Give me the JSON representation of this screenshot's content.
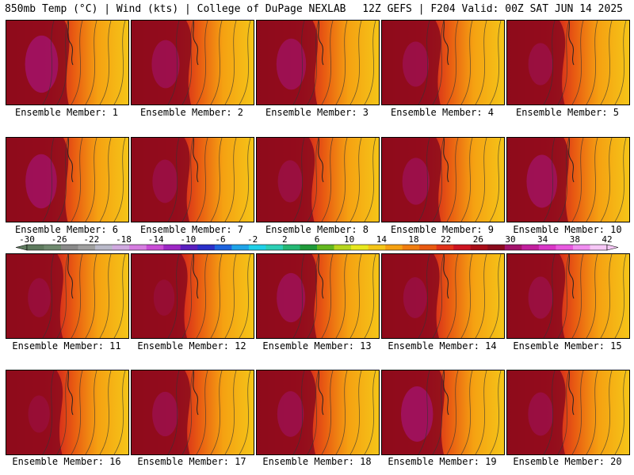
{
  "header": {
    "title_left": "850mb Temp (°C) | Wind (kts) | College of DuPage NEXLAB",
    "title_right": "12Z GEFS | F204 Valid: 00Z SAT JUN 14 2025"
  },
  "panel_label_prefix": "Ensemble Member: ",
  "members": [
    {
      "label": "Ensemble Member: 1",
      "hot": 0.95
    },
    {
      "label": "Ensemble Member: 2",
      "hot": 0.8
    },
    {
      "label": "Ensemble Member: 3",
      "hot": 0.85
    },
    {
      "label": "Ensemble Member: 4",
      "hot": 0.75
    },
    {
      "label": "Ensemble Member: 5",
      "hot": 0.7
    },
    {
      "label": "Ensemble Member: 6",
      "hot": 0.9
    },
    {
      "label": "Ensemble Member: 7",
      "hot": 0.72
    },
    {
      "label": "Ensemble Member: 8",
      "hot": 0.7
    },
    {
      "label": "Ensemble Member: 9",
      "hot": 0.78
    },
    {
      "label": "Ensemble Member: 10",
      "hot": 0.88
    },
    {
      "label": "Ensemble Member: 11",
      "hot": 0.65
    },
    {
      "label": "Ensemble Member: 12",
      "hot": 0.6
    },
    {
      "label": "Ensemble Member: 13",
      "hot": 0.82
    },
    {
      "label": "Ensemble Member: 14",
      "hot": 0.68
    },
    {
      "label": "Ensemble Member: 15",
      "hot": 0.7
    },
    {
      "label": "Ensemble Member: 16",
      "hot": 0.62
    },
    {
      "label": "Ensemble Member: 17",
      "hot": 0.74
    },
    {
      "label": "Ensemble Member: 18",
      "hot": 0.76
    },
    {
      "label": "Ensemble Member: 19",
      "hot": 0.92
    },
    {
      "label": "Ensemble Member: 20",
      "hot": 0.72
    }
  ],
  "colorbar": {
    "ticks": [
      "-30",
      "-26",
      "-22",
      "-18",
      "-14",
      "-10",
      "-6",
      "-2",
      "2",
      "6",
      "10",
      "14",
      "18",
      "22",
      "26",
      "30",
      "34",
      "38",
      "42"
    ],
    "colors": [
      "#5e7a5e",
      "#6f8a6f",
      "#8a8a8a",
      "#a0a0a0",
      "#b9b9c9",
      "#d0a9e0",
      "#d67ee0",
      "#c94dd6",
      "#9d27c5",
      "#5a1fbf",
      "#2a2fc9",
      "#1d63de",
      "#1fa3e8",
      "#1fd0e8",
      "#2ccfb5",
      "#24b874",
      "#1f9a3a",
      "#63b81f",
      "#b6d61f",
      "#e8e81f",
      "#f5c518",
      "#f5a112",
      "#f07d10",
      "#e85a12",
      "#e0321a",
      "#cc1420",
      "#a80d18",
      "#8a0a1c",
      "#a3136b",
      "#c21f9e",
      "#d936c7",
      "#e85ae0",
      "#f08ef0",
      "#f6c7f6"
    ]
  }
}
